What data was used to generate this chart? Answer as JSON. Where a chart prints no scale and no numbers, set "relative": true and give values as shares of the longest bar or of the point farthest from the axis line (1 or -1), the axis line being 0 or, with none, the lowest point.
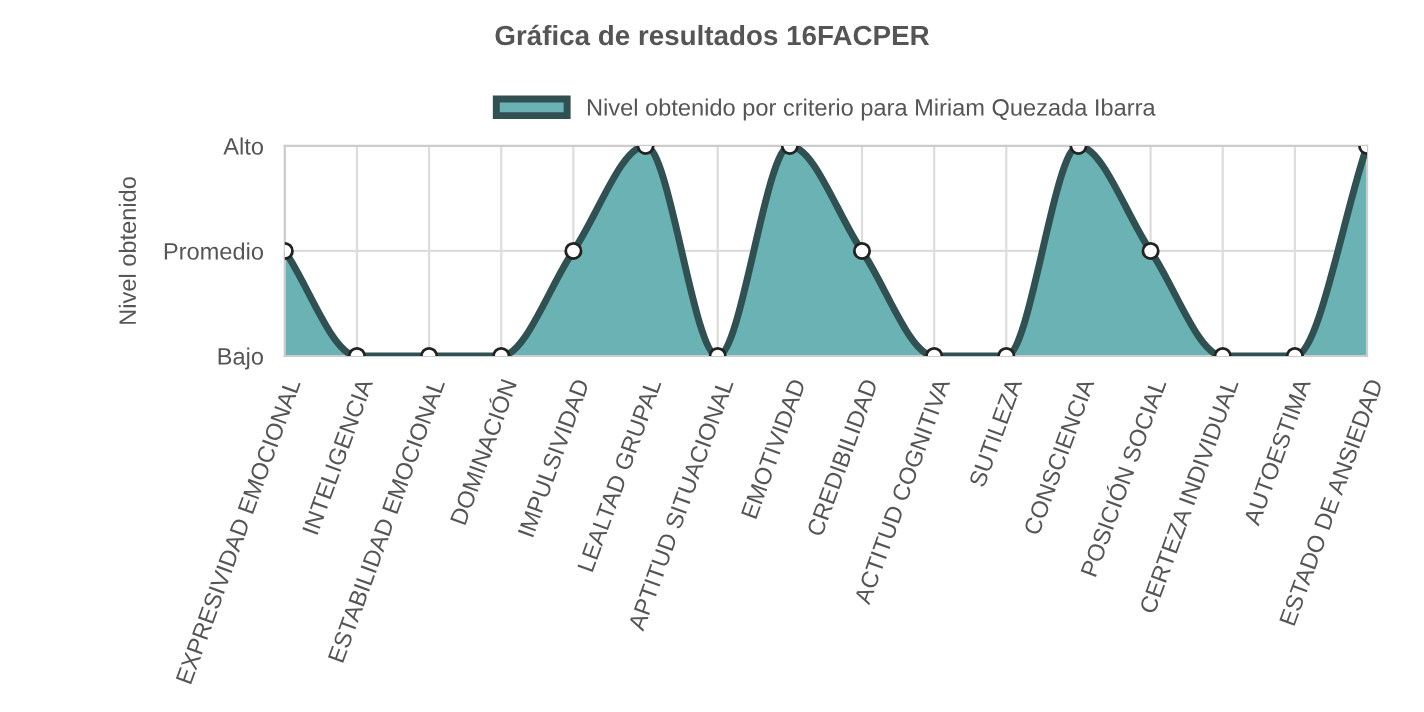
{
  "chart_data": {
    "type": "area",
    "title": "Gráfica de resultados 16FACPER",
    "ylabel": "Nivel obtenido",
    "categories": [
      "EXPRESIVIDAD EMOCIONAL",
      "INTELIGENCIA",
      "ESTABILIDAD EMOCIONAL",
      "DOMINACIÓN",
      "IMPULSIVIDAD",
      "LEALTAD GRUPAL",
      "APTITUD SITUACIONAL",
      "EMOTIVIDAD",
      "CREDIBILIDAD",
      "ACTITUD COGNITIVA",
      "SUTILEZA",
      "CONSCIENCIA",
      "POSICIÓN SOCIAL",
      "CERTEZA INDIVIDUAL",
      "AUTOESTIMA",
      "ESTADO DE ANSIEDAD"
    ],
    "series": [
      {
        "name": "Nivel obtenido por criterio para Miriam Quezada Ibarra",
        "color": "#6ab2b4",
        "values": [
          0.5,
          0,
          0,
          0,
          0.5,
          1,
          0,
          1,
          0.5,
          0,
          0,
          1,
          0.5,
          0,
          0,
          1
        ]
      }
    ],
    "relative": true,
    "annotations": [
      "Bajo",
      "Promedio",
      "Alto"
    ],
    "grid": true,
    "legend": "top",
    "marker": "circle",
    "line_style": "solid"
  }
}
